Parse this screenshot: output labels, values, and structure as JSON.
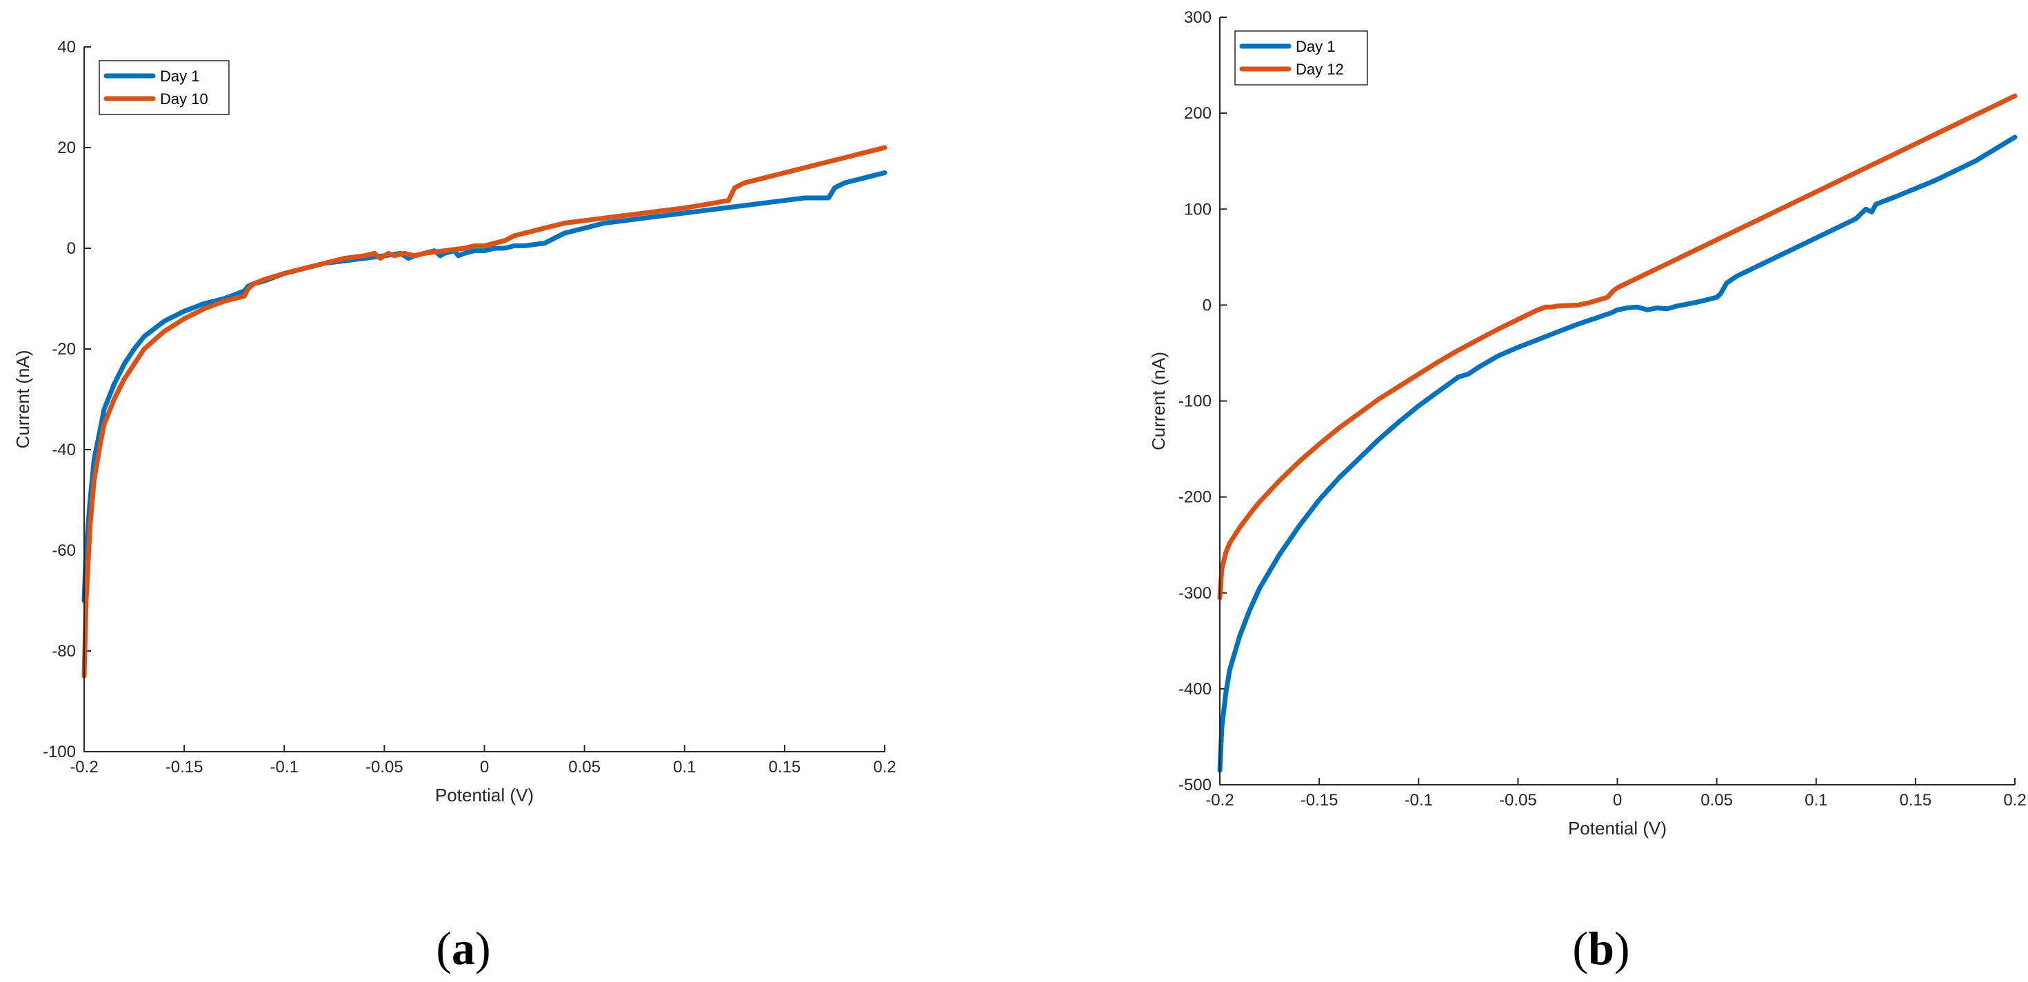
{
  "chart_data": [
    {
      "type": "line",
      "panel_label": {
        "open": "(",
        "letter": "a",
        "close": ")"
      },
      "xlabel": "Potential (V)",
      "ylabel": "Current (nA)",
      "xlim": [
        -0.2,
        0.2
      ],
      "ylim": [
        -100,
        40
      ],
      "xticks": [
        -0.2,
        -0.15,
        -0.1,
        -0.05,
        0,
        0.05,
        0.1,
        0.15,
        0.2
      ],
      "yticks": [
        -100,
        -80,
        -60,
        -40,
        -20,
        0,
        20,
        40
      ],
      "legend_position": "top-left",
      "series": [
        {
          "name": "Day 1",
          "color": "#0072BD",
          "x": [
            -0.2,
            -0.199,
            -0.197,
            -0.195,
            -0.192,
            -0.19,
            -0.185,
            -0.18,
            -0.175,
            -0.17,
            -0.16,
            -0.15,
            -0.14,
            -0.13,
            -0.12,
            -0.118,
            -0.115,
            -0.11,
            -0.1,
            -0.09,
            -0.08,
            -0.07,
            -0.06,
            -0.05,
            -0.042,
            -0.038,
            -0.035,
            -0.03,
            -0.025,
            -0.022,
            -0.02,
            -0.015,
            -0.013,
            -0.01,
            -0.005,
            0,
            0.005,
            0.01,
            0.015,
            0.02,
            0.03,
            0.035,
            0.04,
            0.05,
            0.06,
            0.08,
            0.1,
            0.12,
            0.14,
            0.16,
            0.172,
            0.175,
            0.18,
            0.19,
            0.2
          ],
          "y": [
            -70,
            -60,
            -50,
            -42,
            -36,
            -32,
            -27,
            -23,
            -20,
            -17.5,
            -14.5,
            -12.5,
            -11,
            -10,
            -8.5,
            -7.5,
            -7,
            -6.5,
            -5,
            -4,
            -3,
            -2.5,
            -2,
            -1.5,
            -1,
            -2,
            -1.5,
            -1,
            -0.5,
            -1.5,
            -1,
            -0.5,
            -1.5,
            -1,
            -0.5,
            -0.5,
            0,
            0,
            0.5,
            0.5,
            1,
            2,
            3,
            4,
            5,
            6,
            7,
            8,
            9,
            10,
            10,
            12,
            13,
            14,
            15
          ]
        },
        {
          "name": "Day 10",
          "color": "#D95319",
          "x": [
            -0.2,
            -0.199,
            -0.197,
            -0.195,
            -0.192,
            -0.19,
            -0.185,
            -0.18,
            -0.175,
            -0.17,
            -0.16,
            -0.15,
            -0.14,
            -0.13,
            -0.12,
            -0.118,
            -0.115,
            -0.11,
            -0.1,
            -0.09,
            -0.08,
            -0.07,
            -0.06,
            -0.055,
            -0.052,
            -0.048,
            -0.045,
            -0.04,
            -0.035,
            -0.03,
            -0.02,
            -0.01,
            -0.005,
            0,
            0.005,
            0.01,
            0.015,
            0.02,
            0.03,
            0.04,
            0.06,
            0.08,
            0.1,
            0.115,
            0.122,
            0.125,
            0.13,
            0.14,
            0.16,
            0.18,
            0.2
          ],
          "y": [
            -85,
            -70,
            -55,
            -46,
            -39,
            -35,
            -30,
            -26,
            -23,
            -20,
            -16.5,
            -14,
            -12,
            -10.5,
            -9.5,
            -8,
            -7,
            -6.2,
            -5,
            -4,
            -3,
            -2,
            -1.5,
            -1,
            -2,
            -1,
            -1.5,
            -1,
            -1.5,
            -1,
            -0.5,
            0,
            0.5,
            0.5,
            1,
            1.5,
            2.5,
            3,
            4,
            5,
            6,
            7,
            8,
            9,
            9.5,
            12,
            13,
            14,
            16,
            18,
            20
          ]
        }
      ]
    },
    {
      "type": "line",
      "panel_label": {
        "open": "(",
        "letter": "b",
        "close": ")"
      },
      "xlabel": "Potential (V)",
      "ylabel": "Current (nA)",
      "xlim": [
        -0.2,
        0.2
      ],
      "ylim": [
        -500,
        300
      ],
      "xticks": [
        -0.2,
        -0.15,
        -0.1,
        -0.05,
        0,
        0.05,
        0.1,
        0.15,
        0.2
      ],
      "yticks": [
        -500,
        -400,
        -300,
        -200,
        -100,
        0,
        100,
        200,
        300
      ],
      "legend_position": "top-left",
      "series": [
        {
          "name": "Day 1",
          "color": "#0072BD",
          "x": [
            -0.2,
            -0.199,
            -0.197,
            -0.195,
            -0.19,
            -0.185,
            -0.18,
            -0.17,
            -0.16,
            -0.15,
            -0.14,
            -0.13,
            -0.12,
            -0.11,
            -0.1,
            -0.09,
            -0.08,
            -0.075,
            -0.07,
            -0.06,
            -0.05,
            -0.04,
            -0.03,
            -0.02,
            -0.01,
            -0.003,
            0,
            0.005,
            0.01,
            0.015,
            0.02,
            0.025,
            0.03,
            0.04,
            0.05,
            0.052,
            0.055,
            0.06,
            0.07,
            0.08,
            0.1,
            0.12,
            0.125,
            0.128,
            0.13,
            0.14,
            0.16,
            0.18,
            0.2
          ],
          "y": [
            -485,
            -440,
            -405,
            -380,
            -345,
            -318,
            -295,
            -260,
            -230,
            -203,
            -180,
            -160,
            -140,
            -122,
            -105,
            -90,
            -75,
            -72,
            -65,
            -53,
            -44,
            -36,
            -28,
            -20,
            -13,
            -8,
            -5,
            -3,
            -2,
            -5,
            -3,
            -4,
            -1,
            3,
            8,
            12,
            23,
            30,
            40,
            50,
            70,
            90,
            100,
            97,
            105,
            113,
            130,
            150,
            175
          ]
        },
        {
          "name": "Day 12",
          "color": "#D95319",
          "x": [
            -0.2,
            -0.199,
            -0.197,
            -0.195,
            -0.19,
            -0.185,
            -0.18,
            -0.17,
            -0.16,
            -0.15,
            -0.14,
            -0.13,
            -0.12,
            -0.11,
            -0.1,
            -0.09,
            -0.08,
            -0.07,
            -0.06,
            -0.05,
            -0.04,
            -0.036,
            -0.033,
            -0.03,
            -0.02,
            -0.015,
            -0.01,
            -0.005,
            -0.002,
            0,
            0.01,
            0.02,
            0.03,
            0.04,
            0.05,
            0.06,
            0.08,
            0.1,
            0.12,
            0.14,
            0.16,
            0.18,
            0.2
          ],
          "y": [
            -305,
            -275,
            -258,
            -248,
            -232,
            -218,
            -205,
            -183,
            -163,
            -145,
            -128,
            -113,
            -98,
            -85,
            -72,
            -59,
            -47,
            -36,
            -25,
            -15,
            -5,
            -2,
            -2,
            -1,
            0,
            2,
            5,
            8,
            15,
            18,
            28,
            38,
            48,
            58,
            68,
            78,
            98,
            118,
            138,
            158,
            178,
            198,
            218
          ]
        }
      ]
    }
  ]
}
